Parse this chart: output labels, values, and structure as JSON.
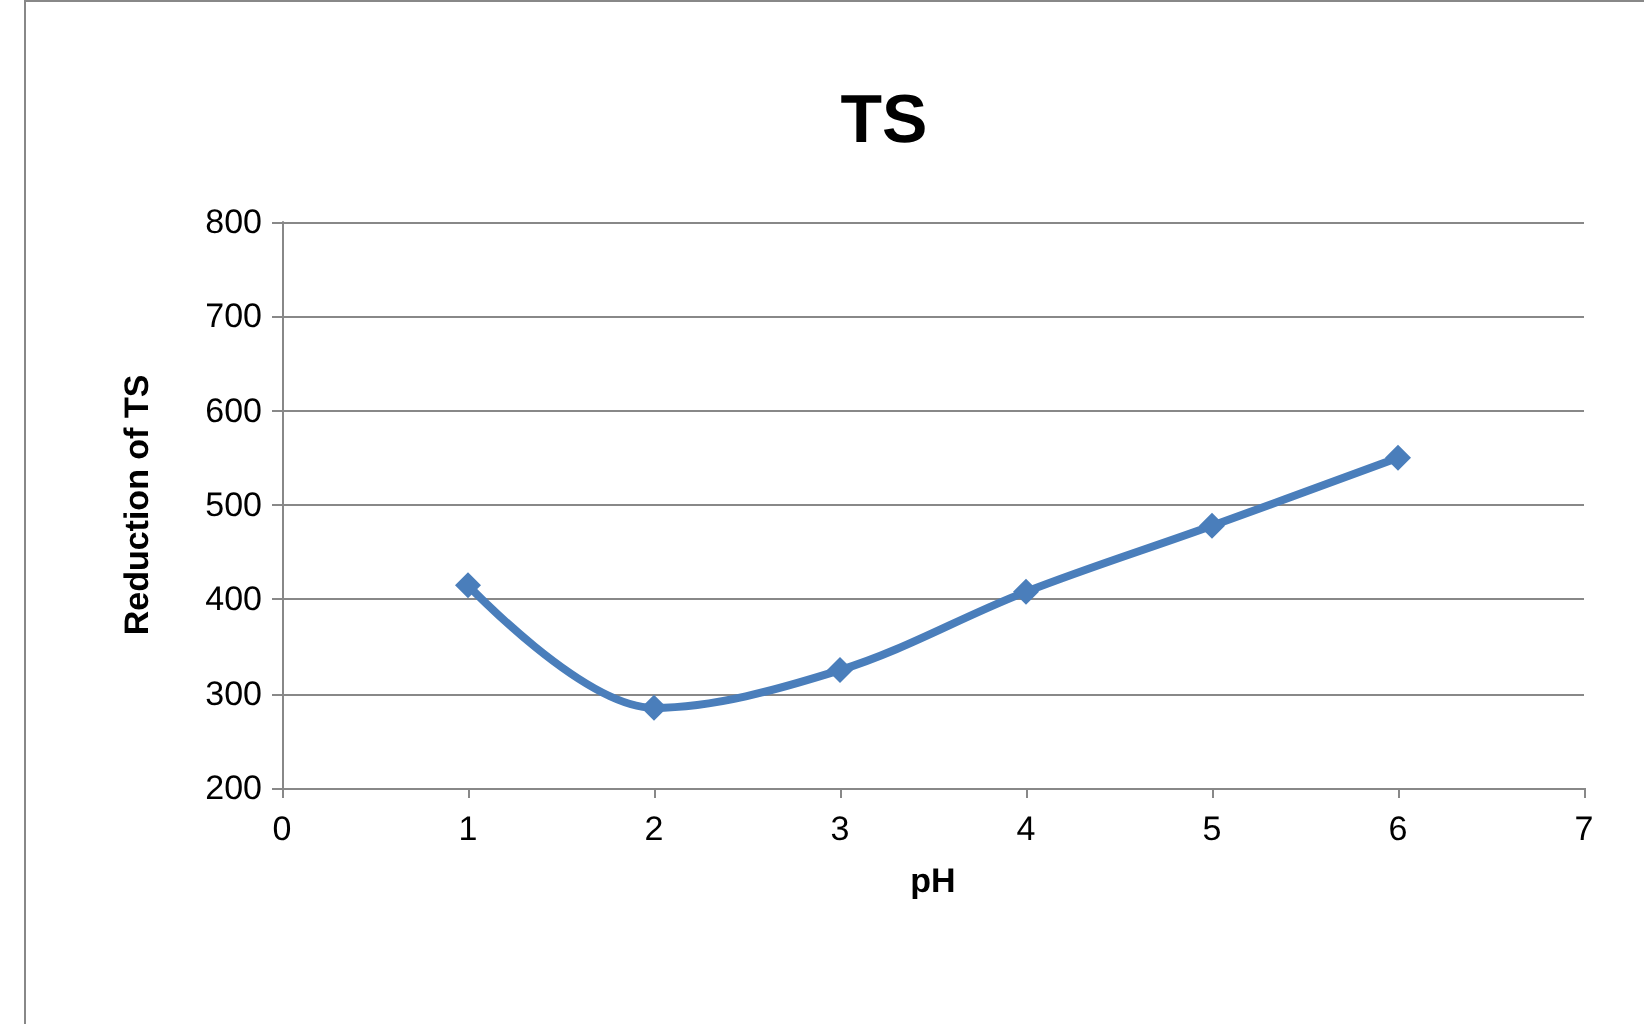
{
  "chart_data": {
    "type": "line",
    "title": "TS",
    "xlabel": "pH",
    "ylabel": "Reduction of TS",
    "x": [
      1,
      2,
      3,
      4,
      5,
      6
    ],
    "series": [
      {
        "color": "#4a7ebb",
        "values": [
          415,
          285,
          325,
          408,
          478,
          550
        ]
      }
    ],
    "xlim": [
      0,
      7
    ],
    "xticks": [
      0,
      1,
      2,
      3,
      4,
      5,
      6,
      7
    ],
    "ylim": [
      200,
      800
    ],
    "yticks": [
      200,
      300,
      400,
      500,
      600,
      700,
      800
    ],
    "grid": "y",
    "marker": "diamond",
    "line_style": "solid"
  }
}
